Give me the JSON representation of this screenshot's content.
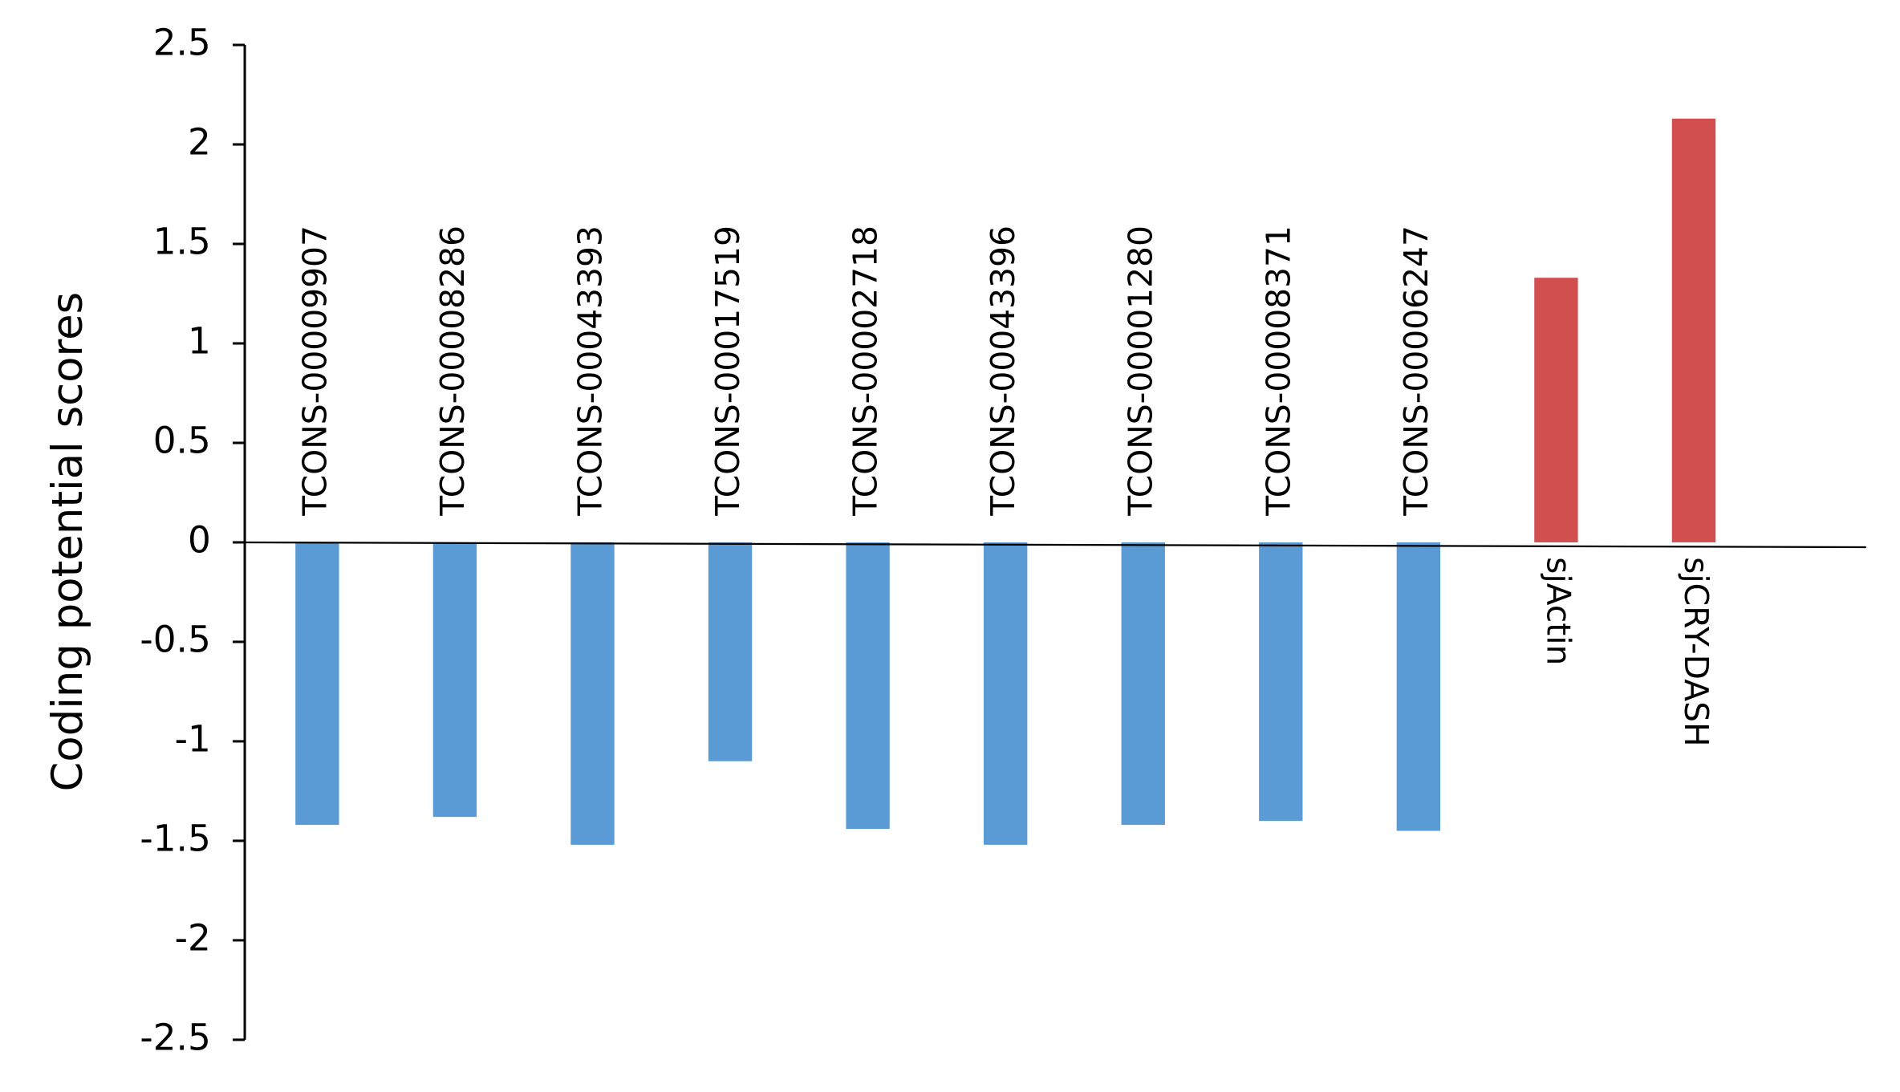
{
  "chart_data": {
    "type": "bar",
    "y_label": "Coding potential scores",
    "categories": [
      "TCONS-00009907",
      "TCONS-00008286",
      "TCONS-00043393",
      "TCONS-00017519",
      "TCONS-00002718",
      "TCONS-00043396",
      "TCONS-00001280",
      "TCONS-00008371",
      "TCONS-00006247",
      "sjActin",
      "sjCRY-DASH"
    ],
    "values": [
      -1.42,
      -1.38,
      -1.52,
      -1.1,
      -1.44,
      -1.52,
      -1.42,
      -1.4,
      -1.45,
      1.33,
      2.13
    ],
    "colors": [
      "#5b9bd5",
      "#5b9bd5",
      "#5b9bd5",
      "#5b9bd5",
      "#5b9bd5",
      "#5b9bd5",
      "#5b9bd5",
      "#5b9bd5",
      "#5b9bd5",
      "#d24f4f",
      "#d24f4f"
    ],
    "ylim": [
      -2.5,
      2.5
    ],
    "yticks": [
      -2.5,
      -2,
      -1.5,
      -1,
      -0.5,
      0,
      0.5,
      1,
      1.5,
      2,
      2.5
    ],
    "grid": false
  }
}
